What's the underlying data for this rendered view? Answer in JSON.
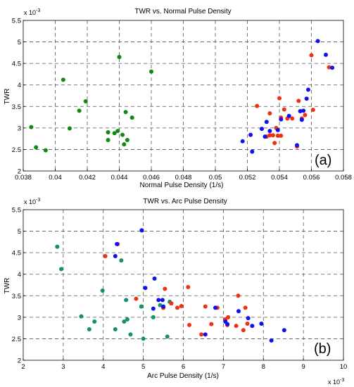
{
  "colors": {
    "blue": "#1010f0",
    "red": "#f03010",
    "green_a": "#118811",
    "green_b": "#16906a"
  },
  "chart_data": [
    {
      "type": "scatter",
      "title": "TWR vs. Normal Pulse Density",
      "xlabel": "Normal Pulse Density (1/s)",
      "ylabel": "TWR",
      "panel_label": "(a)",
      "y_exponent": "x 10",
      "y_exponent_power": "-3",
      "xlim": [
        0.038,
        0.058
      ],
      "ylim": [
        2,
        5.5
      ],
      "grid": true,
      "x_ticks": [
        0.038,
        0.04,
        0.042,
        0.044,
        0.046,
        0.048,
        0.05,
        0.052,
        0.054,
        0.056,
        0.058
      ],
      "x_tick_labels": [
        "0.038",
        "0.04",
        "0.042",
        "0.044",
        "0.046",
        "0.048",
        "0.05",
        "0.052",
        "0.054",
        "0.056",
        "0.058"
      ],
      "y_ticks": [
        2,
        2.5,
        3,
        3.5,
        4,
        4.5,
        5,
        5.5
      ],
      "y_tick_labels": [
        "2",
        "2.5",
        "3",
        "3.5",
        "4",
        "4.5",
        "5",
        "5.5"
      ],
      "series": [
        {
          "color": "#118811",
          "points": [
            [
              0.0385,
              3.02
            ],
            [
              0.0388,
              2.55
            ],
            [
              0.0394,
              2.48
            ],
            [
              0.0405,
              4.12
            ],
            [
              0.0409,
              2.99
            ],
            [
              0.0415,
              3.4
            ],
            [
              0.0419,
              3.62
            ],
            [
              0.0433,
              2.9
            ],
            [
              0.0433,
              2.72
            ],
            [
              0.0437,
              2.88
            ],
            [
              0.0439,
              2.93
            ],
            [
              0.044,
              4.65
            ],
            [
              0.0442,
              2.84
            ],
            [
              0.0443,
              2.62
            ],
            [
              0.0444,
              3.37
            ],
            [
              0.0445,
              2.72
            ],
            [
              0.0448,
              3.24
            ],
            [
              0.046,
              4.31
            ]
          ]
        },
        {
          "color": "#f03010",
          "points": [
            [
              0.0526,
              3.51
            ],
            [
              0.0532,
              2.8
            ],
            [
              0.0534,
              3.34
            ],
            [
              0.0534,
              2.83
            ],
            [
              0.0536,
              2.83
            ],
            [
              0.0537,
              2.65
            ],
            [
              0.0538,
              3.0
            ],
            [
              0.0539,
              2.82
            ],
            [
              0.054,
              3.69
            ],
            [
              0.0541,
              2.82
            ],
            [
              0.0541,
              3.24
            ],
            [
              0.0543,
              3.43
            ],
            [
              0.0545,
              3.22
            ],
            [
              0.0548,
              3.22
            ],
            [
              0.0551,
              2.57
            ],
            [
              0.0552,
              3.63
            ],
            [
              0.0554,
              3.22
            ],
            [
              0.0556,
              3.3
            ],
            [
              0.056,
              4.69
            ],
            [
              0.0561,
              3.42
            ],
            [
              0.0571,
              4.41
            ]
          ]
        },
        {
          "color": "#1010f0",
          "points": [
            [
              0.0517,
              2.69
            ],
            [
              0.0522,
              2.84
            ],
            [
              0.0523,
              2.45
            ],
            [
              0.0529,
              2.98
            ],
            [
              0.0531,
              2.8
            ],
            [
              0.0532,
              3.14
            ],
            [
              0.0534,
              2.93
            ],
            [
              0.0539,
              2.95
            ],
            [
              0.0541,
              3.2
            ],
            [
              0.0546,
              3.28
            ],
            [
              0.0551,
              2.6
            ],
            [
              0.0553,
              3.39
            ],
            [
              0.0554,
              3.19
            ],
            [
              0.0555,
              3.4
            ],
            [
              0.0557,
              3.68
            ],
            [
              0.0558,
              3.89
            ],
            [
              0.0564,
              5.02
            ],
            [
              0.0569,
              4.7
            ],
            [
              0.0573,
              4.4
            ]
          ]
        }
      ]
    },
    {
      "type": "scatter",
      "title": "TWR vs. Arc Pulse Density",
      "xlabel": "Arc Pulse Density (1/s)",
      "ylabel": "TWR",
      "panel_label": "(b)",
      "y_exponent": "x 10",
      "y_exponent_power": "-3",
      "x_exponent": "x 10",
      "x_exponent_power": "-3",
      "xlim": [
        2,
        10
      ],
      "ylim": [
        2,
        5.5
      ],
      "grid": true,
      "x_ticks": [
        2,
        3,
        4,
        5,
        6,
        7,
        8,
        9,
        10
      ],
      "x_tick_labels": [
        "2",
        "3",
        "4",
        "5",
        "6",
        "7",
        "8",
        "9",
        "10"
      ],
      "y_ticks": [
        2,
        2.5,
        3,
        3.5,
        4,
        4.5,
        5,
        5.5
      ],
      "y_tick_labels": [
        "2",
        "2.5",
        "3",
        "3.5",
        "4",
        "4.5",
        "5",
        "5.5"
      ],
      "series": [
        {
          "color": "#16906a",
          "points": [
            [
              2.85,
              4.64
            ],
            [
              2.95,
              4.12
            ],
            [
              3.45,
              3.02
            ],
            [
              3.65,
              2.72
            ],
            [
              3.78,
              2.9
            ],
            [
              3.98,
              3.62
            ],
            [
              4.3,
              2.72
            ],
            [
              4.45,
              4.32
            ],
            [
              4.52,
              2.9
            ],
            [
              4.57,
              3.4
            ],
            [
              4.6,
              2.95
            ],
            [
              4.68,
              2.6
            ],
            [
              4.95,
              3.25
            ],
            [
              5.0,
              2.5
            ],
            [
              5.25,
              3.0
            ],
            [
              5.42,
              3.28
            ],
            [
              5.5,
              3.22
            ],
            [
              5.6,
              2.55
            ],
            [
              5.66,
              3.36
            ]
          ]
        },
        {
          "color": "#f03010",
          "points": [
            [
              4.05,
              4.42
            ],
            [
              4.36,
              4.7
            ],
            [
              4.82,
              3.43
            ],
            [
              5.5,
              3.22
            ],
            [
              5.54,
              3.66
            ],
            [
              5.7,
              3.32
            ],
            [
              5.85,
              3.22
            ],
            [
              5.95,
              3.26
            ],
            [
              6.12,
              3.7
            ],
            [
              6.15,
              2.82
            ],
            [
              6.45,
              2.6
            ],
            [
              6.55,
              3.25
            ],
            [
              6.7,
              2.84
            ],
            [
              6.85,
              3.22
            ],
            [
              7.05,
              2.95
            ],
            [
              7.1,
              2.82
            ],
            [
              7.12,
              3.0
            ],
            [
              7.32,
              2.8
            ],
            [
              7.37,
              3.5
            ],
            [
              7.5,
              2.7
            ],
            [
              7.55,
              3.22
            ],
            [
              7.6,
              2.85
            ]
          ]
        },
        {
          "color": "#1010f0",
          "points": [
            [
              4.3,
              4.42
            ],
            [
              4.34,
              4.7
            ],
            [
              4.96,
              5.02
            ],
            [
              5.05,
              3.68
            ],
            [
              5.25,
              3.2
            ],
            [
              5.28,
              3.9
            ],
            [
              5.38,
              3.4
            ],
            [
              5.48,
              3.4
            ],
            [
              5.5,
              3.25
            ],
            [
              6.55,
              2.6
            ],
            [
              6.8,
              3.22
            ],
            [
              7.05,
              2.9
            ],
            [
              7.1,
              2.84
            ],
            [
              7.38,
              3.14
            ],
            [
              7.62,
              2.98
            ],
            [
              7.72,
              2.8
            ],
            [
              7.95,
              2.85
            ],
            [
              8.2,
              2.46
            ],
            [
              8.52,
              2.7
            ]
          ]
        }
      ]
    }
  ]
}
